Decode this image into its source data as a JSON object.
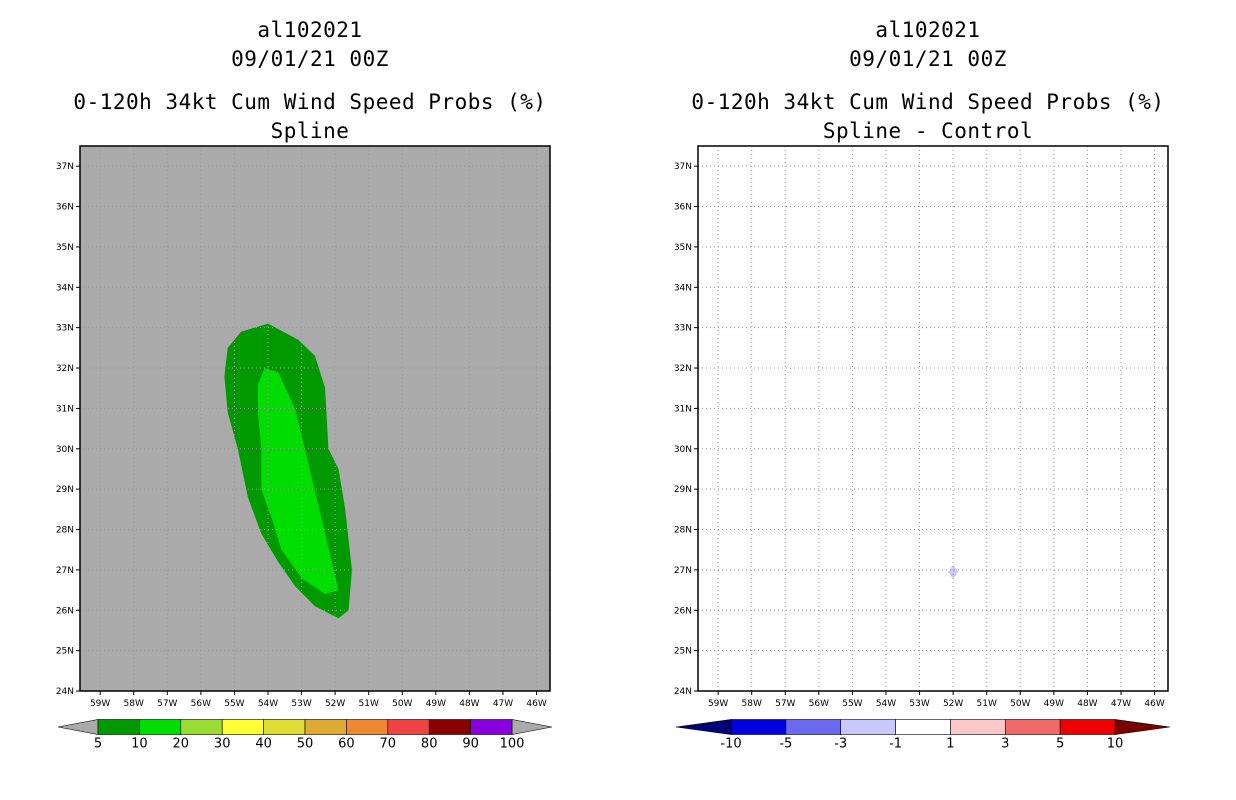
{
  "chart_data": [
    {
      "type": "map-contour",
      "title": [
        "al102021",
        "09/01/21 00Z",
        "0-120h 34kt Cum Wind Speed Probs (%)",
        "Spline"
      ],
      "lon_range": [
        -59.6,
        -45.6
      ],
      "lat_range": [
        24,
        37.5
      ],
      "x_ticks": [
        "59W",
        "58W",
        "57W",
        "56W",
        "55W",
        "54W",
        "53W",
        "52W",
        "51W",
        "50W",
        "49W",
        "48W",
        "47W",
        "46W"
      ],
      "y_ticks": [
        "24N",
        "25N",
        "26N",
        "27N",
        "28N",
        "29N",
        "30N",
        "31N",
        "32N",
        "33N",
        "34N",
        "35N",
        "36N",
        "37N"
      ],
      "background_color": "#aaaaaa",
      "regions": [
        {
          "level": "5-10",
          "color": "#009900",
          "polygon": [
            [
              -55.2,
              32.5
            ],
            [
              -54.8,
              32.9
            ],
            [
              -54.0,
              33.1
            ],
            [
              -53.1,
              32.7
            ],
            [
              -52.6,
              32.3
            ],
            [
              -52.3,
              31.5
            ],
            [
              -52.2,
              30.0
            ],
            [
              -51.9,
              29.5
            ],
            [
              -51.7,
              28.5
            ],
            [
              -51.5,
              27.0
            ],
            [
              -51.6,
              26.0
            ],
            [
              -51.9,
              25.8
            ],
            [
              -52.6,
              26.1
            ],
            [
              -53.2,
              26.6
            ],
            [
              -53.7,
              27.2
            ],
            [
              -54.2,
              27.9
            ],
            [
              -54.6,
              28.8
            ],
            [
              -54.9,
              30.0
            ],
            [
              -55.2,
              30.9
            ],
            [
              -55.3,
              31.8
            ]
          ]
        },
        {
          "level": "10-20",
          "color": "#00dd00",
          "polygon": [
            [
              -54.1,
              32.0
            ],
            [
              -53.7,
              31.9
            ],
            [
              -53.2,
              31.0
            ],
            [
              -52.9,
              30.0
            ],
            [
              -52.5,
              28.6
            ],
            [
              -52.1,
              27.2
            ],
            [
              -51.9,
              26.5
            ],
            [
              -52.3,
              26.4
            ],
            [
              -53.0,
              26.8
            ],
            [
              -53.6,
              27.5
            ],
            [
              -53.9,
              28.3
            ],
            [
              -54.2,
              29.0
            ],
            [
              -54.2,
              30.0
            ],
            [
              -54.3,
              30.9
            ],
            [
              -54.3,
              31.6
            ]
          ]
        }
      ],
      "colorbar": {
        "labels": [
          "5",
          "10",
          "20",
          "30",
          "40",
          "50",
          "60",
          "70",
          "80",
          "90",
          "100"
        ],
        "colors": [
          "#009900",
          "#00dd00",
          "#99dd33",
          "#ffff33",
          "#dddd33",
          "#ddaa33",
          "#ee8833",
          "#ee4444",
          "#880000",
          "#8800dd"
        ],
        "end_color": "#aaaaaa"
      }
    },
    {
      "type": "map-contour",
      "title": [
        "al102021",
        "09/01/21 00Z",
        "0-120h 34kt Cum Wind Speed Probs (%)",
        "Spline - Control"
      ],
      "lon_range": [
        -59.6,
        -45.6
      ],
      "lat_range": [
        24,
        37.5
      ],
      "x_ticks": [
        "59W",
        "58W",
        "57W",
        "56W",
        "55W",
        "54W",
        "53W",
        "52W",
        "51W",
        "50W",
        "49W",
        "48W",
        "47W",
        "46W"
      ],
      "y_ticks": [
        "24N",
        "25N",
        "26N",
        "27N",
        "28N",
        "29N",
        "30N",
        "31N",
        "32N",
        "33N",
        "34N",
        "35N",
        "36N",
        "37N"
      ],
      "background_color": "#ffffff",
      "grid": true,
      "regions": [
        {
          "level": "-3 to -1",
          "color": "#c8c8ff",
          "center": [
            -52.0,
            26.95
          ]
        }
      ],
      "colorbar": {
        "labels": [
          "-10",
          "-5",
          "-3",
          "-1",
          "1",
          "3",
          "5",
          "10"
        ],
        "colors": [
          "#0000dd",
          "#6a6af0",
          "#c8c8ff",
          "#ffffff",
          "#ffc8c8",
          "#f06a6a",
          "#ee0000"
        ],
        "end_left": "#00007a",
        "end_right": "#7a0000"
      }
    }
  ]
}
